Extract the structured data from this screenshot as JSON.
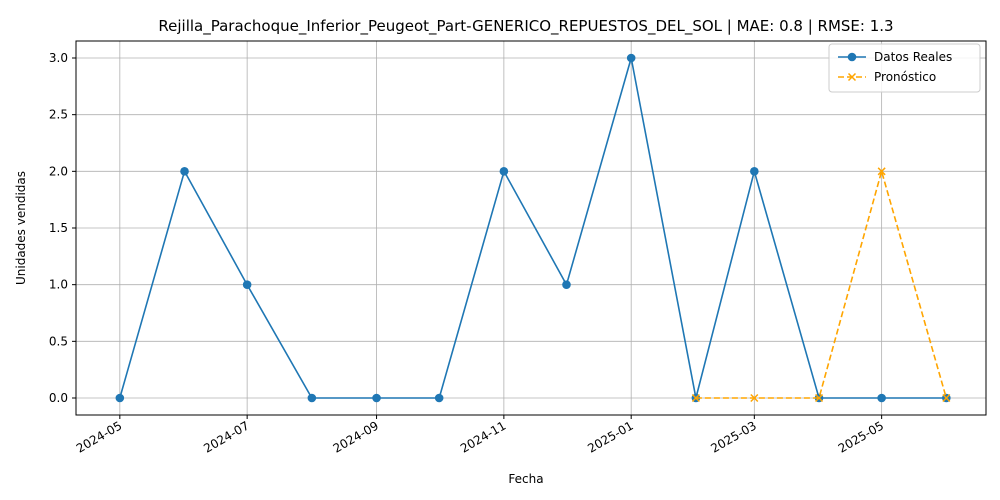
{
  "chart_data": {
    "type": "line",
    "title": "Rejilla_Parachoque_Inferior_Peugeot_Part-GENERICO_REPUESTOS_DEL_SOL | MAE: 0.8 | RMSE: 1.3",
    "xlabel": "Fecha",
    "ylabel": "Unidades vendidas",
    "x_ticks": [
      "2024-05",
      "2024-07",
      "2024-09",
      "2024-11",
      "2025-01",
      "2025-03",
      "2025-05"
    ],
    "x_tick_dates": [
      "2024-05-01",
      "2024-07-01",
      "2024-09-01",
      "2024-11-01",
      "2025-01-01",
      "2025-03-01",
      "2025-05-01"
    ],
    "y_ticks": [
      "0.0",
      "0.5",
      "1.0",
      "1.5",
      "2.0",
      "2.5",
      "3.0"
    ],
    "xlim": [
      "2024-04-10",
      "2025-06-20"
    ],
    "ylim": [
      -0.15,
      3.15
    ],
    "grid": true,
    "legend_position": "top-right",
    "series": [
      {
        "name": "Datos Reales",
        "color": "#1f77b4",
        "style": "solid",
        "marker": "circle",
        "x": [
          "2024-05-01",
          "2024-06-01",
          "2024-07-01",
          "2024-08-01",
          "2024-09-01",
          "2024-10-01",
          "2024-11-01",
          "2024-12-01",
          "2025-01-01",
          "2025-02-01",
          "2025-03-01",
          "2025-04-01",
          "2025-05-01",
          "2025-06-01"
        ],
        "values": [
          0,
          2,
          1,
          0,
          0,
          0,
          2,
          1,
          3,
          0,
          2,
          0,
          0,
          0
        ]
      },
      {
        "name": "Pronóstico",
        "color": "#ffa500",
        "style": "dashed",
        "marker": "x",
        "x": [
          "2025-02-01",
          "2025-03-01",
          "2025-04-01",
          "2025-05-01",
          "2025-06-01"
        ],
        "values": [
          0,
          0,
          0,
          2,
          0
        ]
      }
    ]
  }
}
